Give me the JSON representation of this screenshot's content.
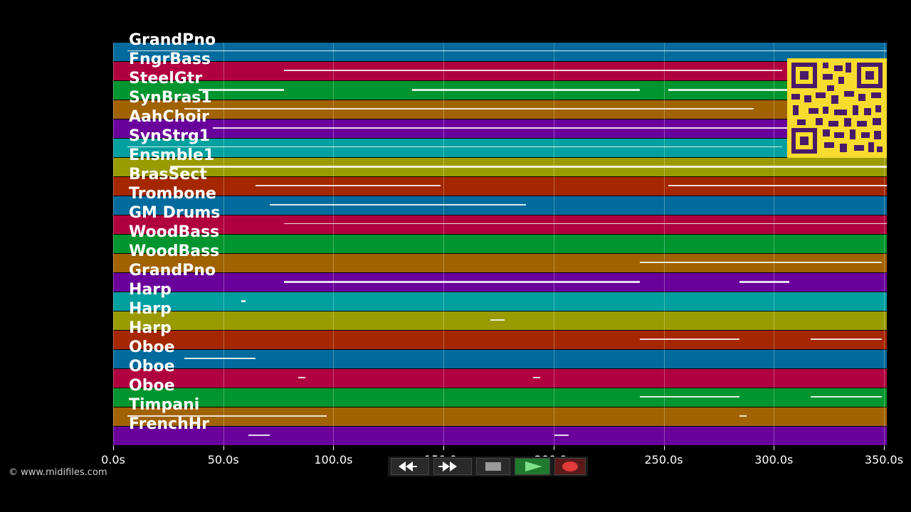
{
  "tracks": [
    {
      "name": "GrandPno",
      "color": "#006b9c"
    },
    {
      "name": "FngrBass",
      "color": "#b10040"
    },
    {
      "name": "SteelGtr",
      "color": "#00952e"
    },
    {
      "name": "SynBras1",
      "color": "#a16200"
    },
    {
      "name": "AahChoir",
      "color": "#6a009c"
    },
    {
      "name": "SynStrg1",
      "color": "#00a0a0"
    },
    {
      "name": "Ensmble1",
      "color": "#9a9b00"
    },
    {
      "name": "BrasSect",
      "color": "#a42700"
    },
    {
      "name": "Trombone",
      "color": "#006b9c"
    },
    {
      "name": "GM Drums",
      "color": "#b10040"
    },
    {
      "name": "WoodBass",
      "color": "#00952e"
    },
    {
      "name": "WoodBass",
      "color": "#a16200"
    },
    {
      "name": "GrandPno",
      "color": "#6a009c"
    },
    {
      "name": "Harp",
      "color": "#00a0a0"
    },
    {
      "name": "Harp",
      "color": "#9a9b00"
    },
    {
      "name": "Harp",
      "color": "#a42700"
    },
    {
      "name": "Oboe",
      "color": "#006b9c"
    },
    {
      "name": "Oboe",
      "color": "#b10040"
    },
    {
      "name": "Oboe",
      "color": "#00952e"
    },
    {
      "name": "Timpani",
      "color": "#a16200"
    },
    {
      "name": "FrenchHr",
      "color": "#6a009c"
    }
  ],
  "axis": {
    "ticks": [
      "0.0s",
      "50.0s",
      "100.0s",
      "150.0s",
      "200.0s",
      "250.0s",
      "300.0s",
      "350.0s"
    ]
  },
  "copyright": "© www.midifiles.com",
  "transport": {
    "rewind_icon": "rewind-icon",
    "fast_forward_icon": "fast-forward-icon",
    "stop_icon": "stop-icon",
    "play_icon": "play-icon",
    "record_icon": "record-icon"
  }
}
